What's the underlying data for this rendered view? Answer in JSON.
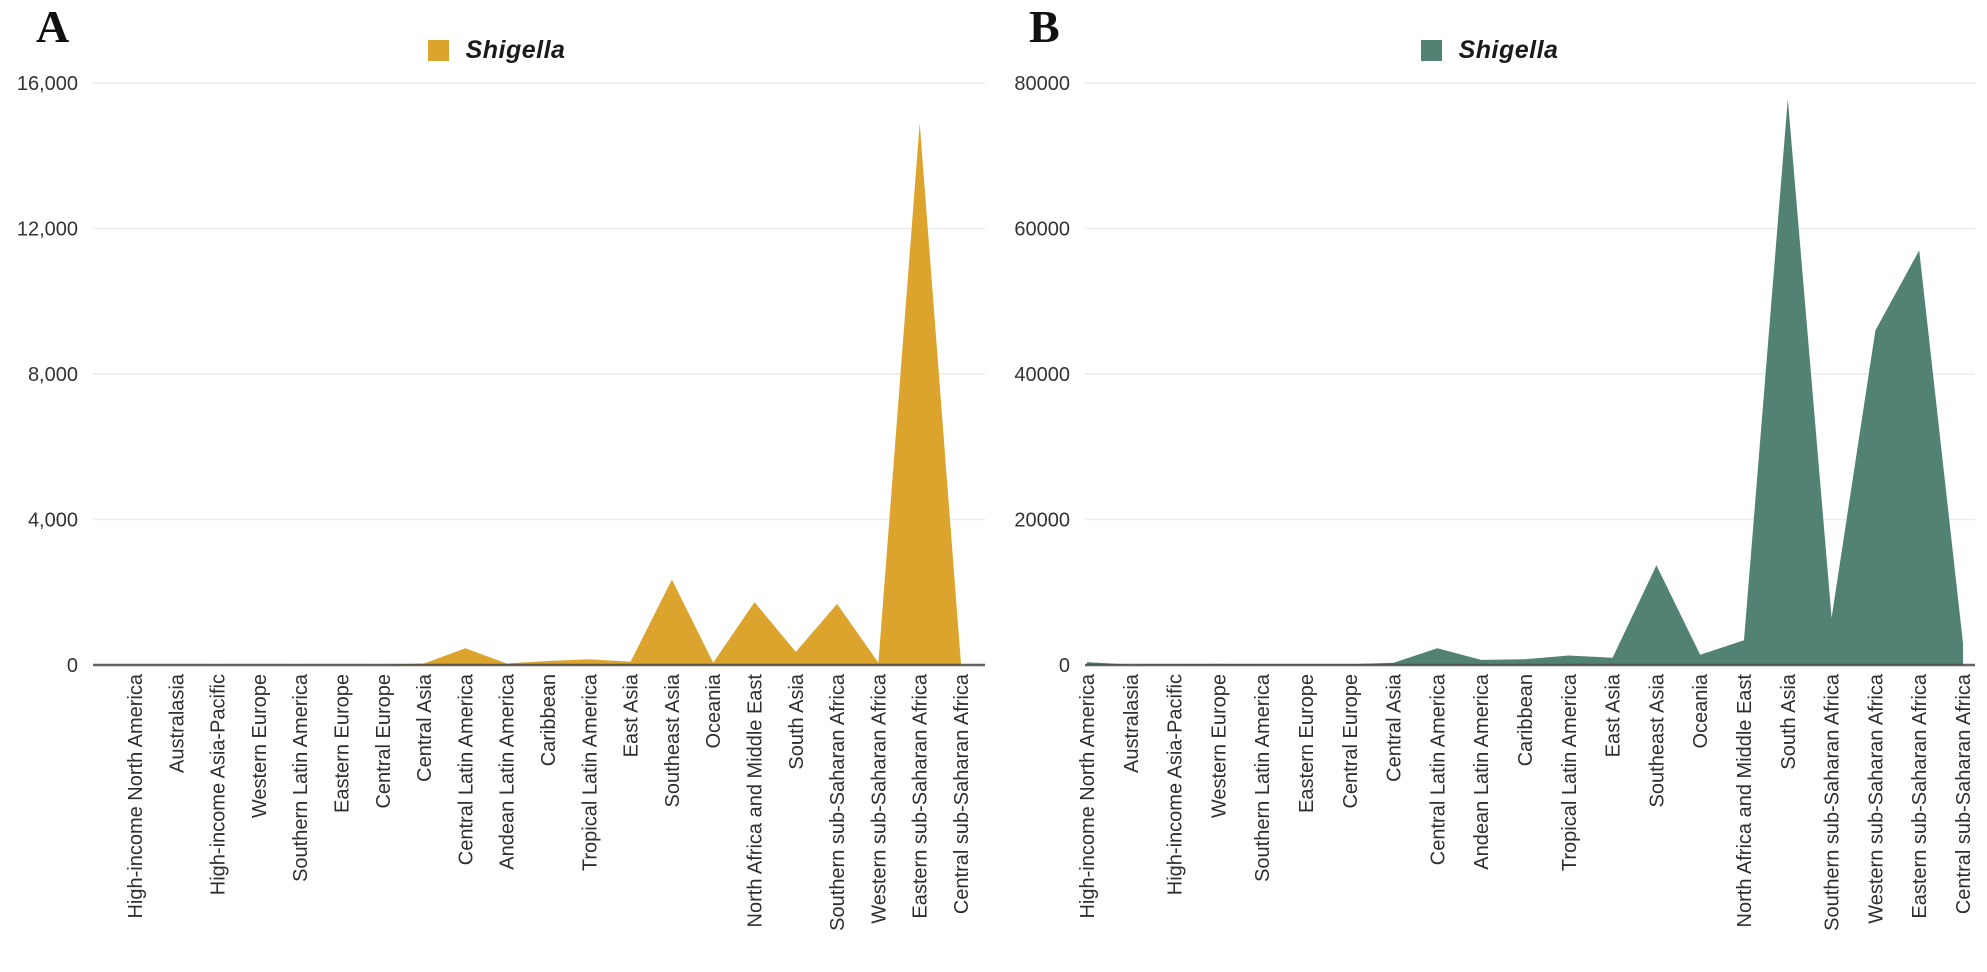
{
  "chart_data": [
    {
      "type": "area",
      "panel_letter": "A",
      "title": "Shigella",
      "legend": [
        "Shigella"
      ],
      "legend_position": "top-center",
      "color": "#DDA42D",
      "grid": true,
      "ylim": [
        0,
        16000
      ],
      "ytick_values": [
        0,
        4000,
        8000,
        12000,
        16000
      ],
      "ytick_labels": [
        "0",
        "4,000",
        "8,000",
        "12,000",
        "16,000"
      ],
      "categories": [
        "High-income North America",
        "Australasia",
        "High-income Asia-Pacific",
        "Western Europe",
        "Southern Latin America",
        "Eastern Europe",
        "Central Europe",
        "Central Asia",
        "Central Latin America",
        "Andean Latin America",
        "Caribbean",
        "Tropical Latin America",
        "East Asia",
        "Southeast Asia",
        "Oceania",
        "North Africa and Middle East",
        "South Asia",
        "Southern sub-Saharan Africa",
        "Western sub-Saharan Africa",
        "Eastern sub-Saharan Africa",
        "Central sub-Saharan Africa"
      ],
      "values": [
        10,
        5,
        10,
        15,
        10,
        15,
        10,
        40,
        460,
        40,
        110,
        160,
        90,
        2350,
        60,
        1730,
        360,
        1680,
        60,
        14900,
        30
      ]
    },
    {
      "type": "area",
      "panel_letter": "B",
      "title": "Shigella",
      "legend": [
        "Shigella"
      ],
      "legend_position": "top-center",
      "color": "#518273",
      "grid": true,
      "ylim": [
        0,
        80000
      ],
      "ytick_values": [
        0,
        20000,
        40000,
        60000,
        80000
      ],
      "ytick_labels": [
        "0",
        "20000",
        "40000",
        "60000",
        "80000"
      ],
      "categories": [
        "High-income North America",
        "Australasia",
        "High-income Asia-Pacific",
        "Western Europe",
        "Southern Latin America",
        "Eastern Europe",
        "Central Europe",
        "Central Asia",
        "Central Latin America",
        "Andean Latin America",
        "Caribbean",
        "Tropical Latin America",
        "East Asia",
        "Southeast Asia",
        "Oceania",
        "North Africa and Middle East",
        "South Asia",
        "Southern sub-Saharan Africa",
        "Western sub-Saharan Africa",
        "Eastern sub-Saharan Africa",
        "Central sub-Saharan Africa"
      ],
      "values": [
        400,
        50,
        100,
        150,
        100,
        100,
        100,
        300,
        2300,
        700,
        800,
        1300,
        1000,
        13700,
        1400,
        3400,
        77800,
        6500,
        46000,
        57000,
        3000
      ]
    }
  ]
}
